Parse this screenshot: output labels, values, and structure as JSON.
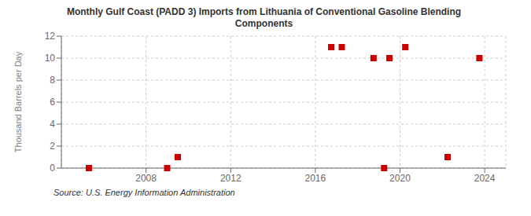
{
  "chart_data": {
    "type": "scatter",
    "title": "Monthly Gulf Coast (PADD 3) Imports from Lithuania of Conventional Gasoline Blending\nComponents",
    "ylabel": "Thousand Barrels per Day",
    "annotations": [
      "Source: U.S. Energy Information Administration"
    ],
    "series": [
      {
        "color": "#cc0000",
        "marker": "square",
        "x": [
          2005.3,
          2009.0,
          2009.5,
          2016.75,
          2017.25,
          2018.75,
          2019.5,
          2020.25,
          2019.25,
          2022.25,
          2023.75
        ],
        "values": [
          0,
          0,
          1,
          11,
          11,
          10,
          10,
          11,
          0,
          1,
          10
        ]
      }
    ],
    "xlim": [
      2004,
      2025
    ],
    "xticks": [
      2008,
      2012,
      2016,
      2020,
      2024
    ],
    "ylim": [
      0,
      12
    ],
    "yticks": [
      0,
      2,
      4,
      6,
      8,
      10,
      12
    ],
    "grid": true
  }
}
